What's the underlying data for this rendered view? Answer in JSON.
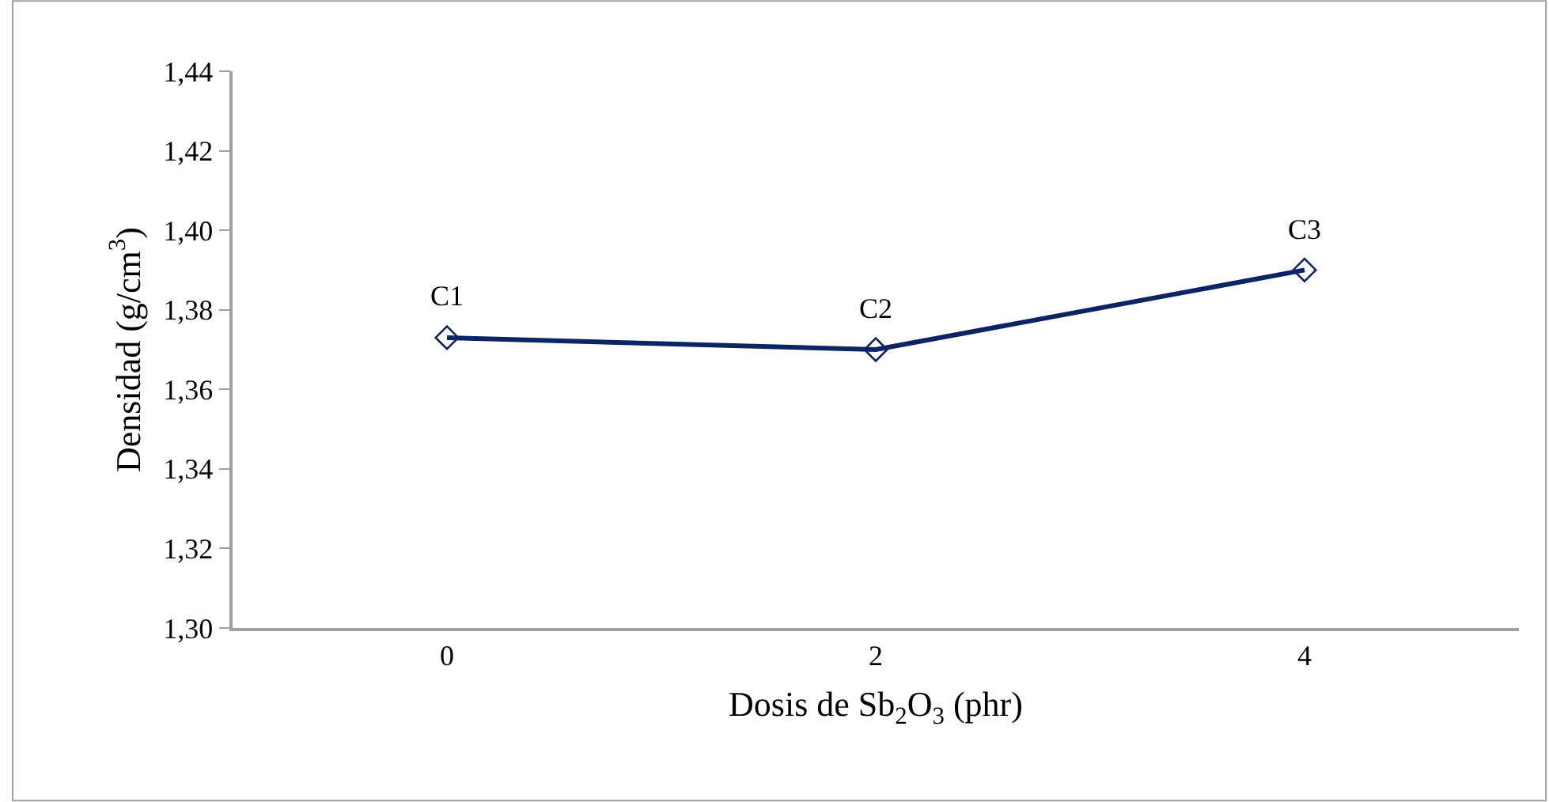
{
  "chart_data": {
    "type": "line",
    "xlabel": "Dosis de Sb$_{2}$O$_{3}$ (phr)",
    "ylabel": "Densidad (g/cm$^{3}$)",
    "categories": [
      "0",
      "2",
      "4"
    ],
    "series": [
      {
        "color": "#0a2464",
        "values": [
          1.373,
          1.37,
          1.39
        ]
      }
    ],
    "ylim": [
      1.3,
      1.44
    ],
    "yticks": [
      {
        "value": 1.3,
        "label": "1,30"
      },
      {
        "value": 1.32,
        "label": "1,32"
      },
      {
        "value": 1.34,
        "label": "1,34"
      },
      {
        "value": 1.36,
        "label": "1,36"
      },
      {
        "value": 1.38,
        "label": "1,38"
      },
      {
        "value": 1.4,
        "label": "1,40"
      },
      {
        "value": 1.42,
        "label": "1,42"
      },
      {
        "value": 1.44,
        "label": "1,44"
      }
    ],
    "annotations": [
      {
        "text": "C1",
        "x": "0",
        "y": 1.373
      },
      {
        "text": "C2",
        "x": "2",
        "y": 1.37
      },
      {
        "text": "C3",
        "x": "4",
        "y": 1.39
      }
    ],
    "marker": "diamond",
    "line_style": "solid"
  }
}
